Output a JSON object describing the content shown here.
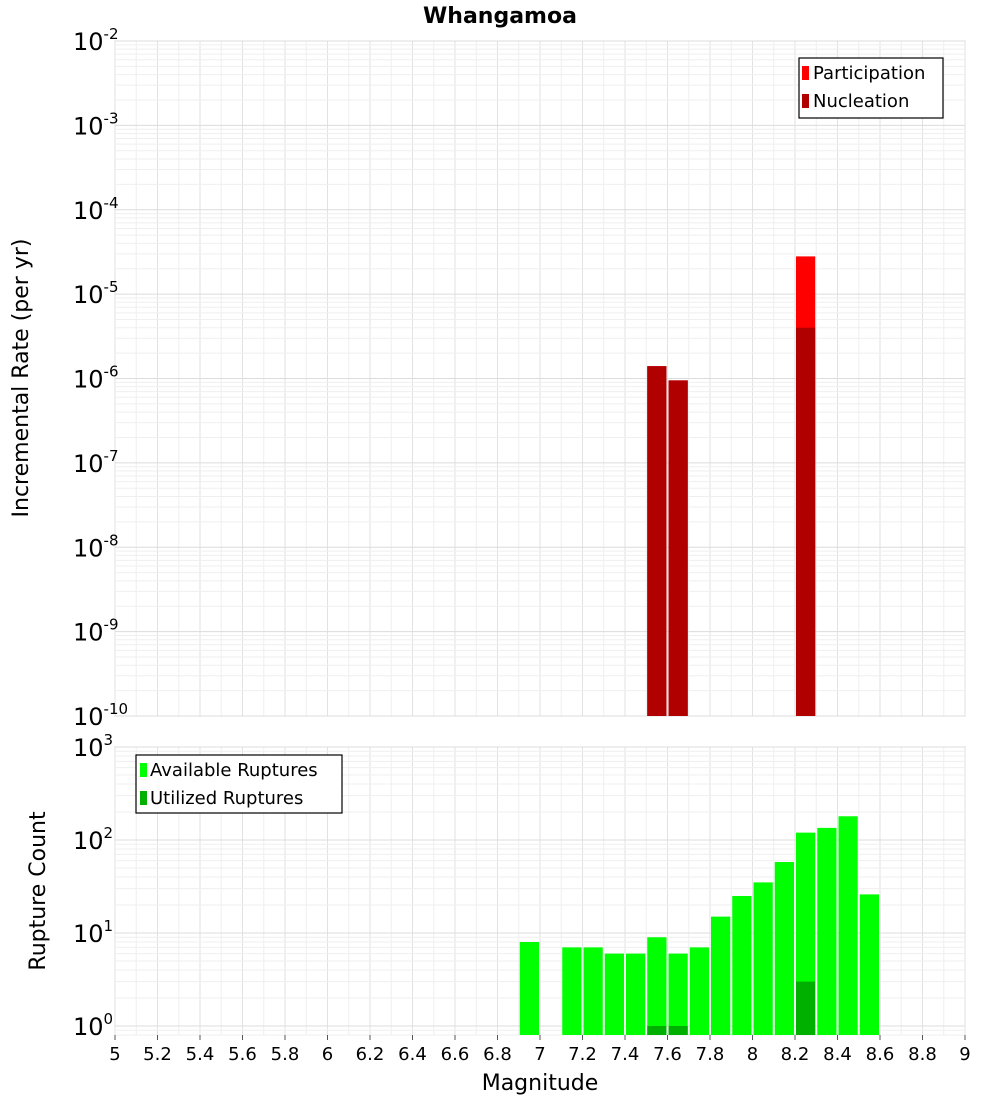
{
  "chart_data": [
    {
      "type": "bar",
      "title": "Whangamoa",
      "ylabel": "Incremental Rate (per yr)",
      "yscale": "log",
      "ylim": [
        1e-10,
        0.01
      ],
      "xlim": [
        5,
        9
      ],
      "bar_width": 0.1,
      "grid": true,
      "legend_position": "top-right",
      "ytick_labels": [
        {
          "base": "10",
          "exp": "-10"
        },
        {
          "base": "10",
          "exp": "-9"
        },
        {
          "base": "10",
          "exp": "-8"
        },
        {
          "base": "10",
          "exp": "-7"
        },
        {
          "base": "10",
          "exp": "-6"
        },
        {
          "base": "10",
          "exp": "-5"
        },
        {
          "base": "10",
          "exp": "-4"
        },
        {
          "base": "10",
          "exp": "-3"
        },
        {
          "base": "10",
          "exp": "-2"
        }
      ],
      "series": [
        {
          "name": "Participation",
          "color": "#ff0000",
          "x": [
            7.55,
            7.65,
            8.25
          ],
          "values": [
            1.4e-06,
            9.5e-07,
            2.8e-05
          ]
        },
        {
          "name": "Nucleation",
          "color": "#b00000",
          "x": [
            7.55,
            7.65,
            8.25
          ],
          "values": [
            1.4e-06,
            9.5e-07,
            4e-06
          ]
        }
      ]
    },
    {
      "type": "bar",
      "xlabel": "Magnitude",
      "ylabel": "Rupture Count",
      "yscale": "log",
      "ylim": [
        0.8,
        1000
      ],
      "xlim": [
        5,
        9
      ],
      "bar_width": 0.1,
      "grid": true,
      "legend_position": "top-left",
      "ytick_labels": [
        {
          "base": "10",
          "exp": "0"
        },
        {
          "base": "10",
          "exp": "1"
        },
        {
          "base": "10",
          "exp": "2"
        },
        {
          "base": "10",
          "exp": "3"
        }
      ],
      "xtick_labels": [
        "5",
        "5.2",
        "5.4",
        "5.6",
        "5.8",
        "6",
        "6.2",
        "6.4",
        "6.6",
        "6.8",
        "7",
        "7.2",
        "7.4",
        "7.6",
        "7.8",
        "8",
        "8.2",
        "8.4",
        "8.6",
        "8.8",
        "9"
      ],
      "series": [
        {
          "name": "Available Ruptures",
          "color": "#00ff00",
          "x": [
            6.95,
            7.15,
            7.25,
            7.35,
            7.45,
            7.55,
            7.65,
            7.75,
            7.85,
            7.95,
            8.05,
            8.15,
            8.25,
            8.35,
            8.45,
            8.55
          ],
          "values": [
            8,
            7,
            7,
            6,
            6,
            9,
            6,
            7,
            15,
            25,
            35,
            58,
            120,
            135,
            180,
            26
          ]
        },
        {
          "name": "Utilized Ruptures",
          "color": "#00b000",
          "x": [
            7.55,
            7.65,
            8.25
          ],
          "values": [
            1,
            1,
            3
          ]
        }
      ]
    }
  ]
}
